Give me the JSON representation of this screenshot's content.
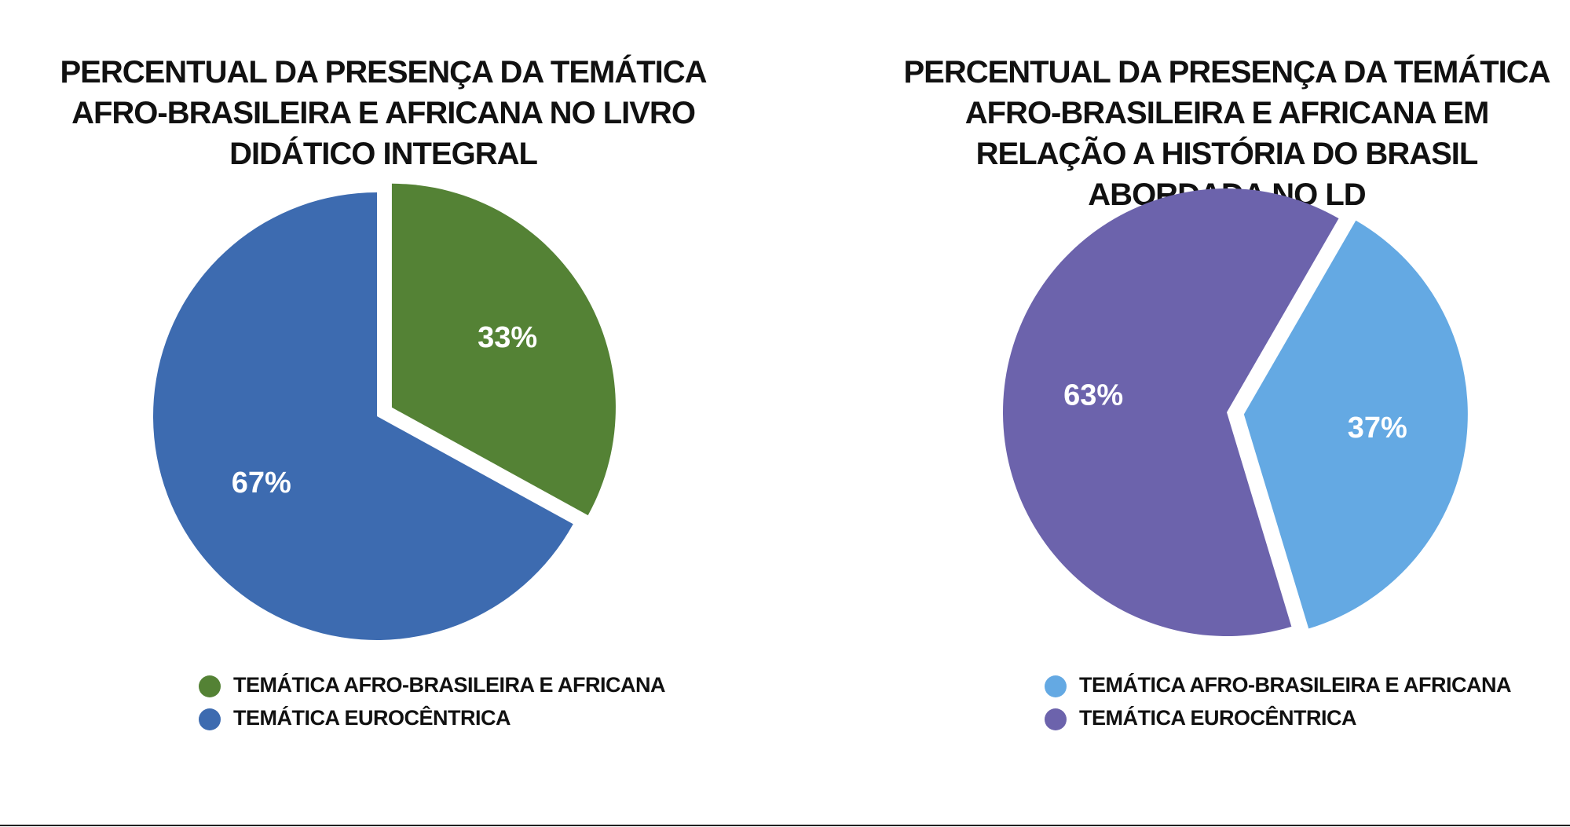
{
  "chart_data": [
    {
      "type": "pie",
      "title": "PERCENTUAL DA PRESENÇA DA TEMÁTICA AFRO-BRASILEIRA E AFRICANA NO LIVRO DIDÁTICO INTEGRAL",
      "categories": [
        "TEMÁTICA AFRO-BRASILEIRA E AFRICANA",
        "TEMÁTICA EUROCÊNTRICA"
      ],
      "values": [
        33,
        67
      ],
      "value_labels": [
        "33%",
        "67%"
      ],
      "colors": [
        "#548235",
        "#3d6bb0"
      ]
    },
    {
      "type": "pie",
      "title": "PERCENTUAL DA PRESENÇA DA TEMÁTICA AFRO-BRASILEIRA E AFRICANA EM RELAÇÃO A HISTÓRIA DO BRASIL ABORDADA NO LD",
      "categories": [
        "TEMÁTICA AFRO-BRASILEIRA E AFRICANA",
        "TEMÁTICA EUROCÊNTRICA"
      ],
      "values": [
        37,
        63
      ],
      "value_labels": [
        "37%",
        "63%"
      ],
      "colors": [
        "#64a9e3",
        "#6c63ac"
      ]
    }
  ]
}
